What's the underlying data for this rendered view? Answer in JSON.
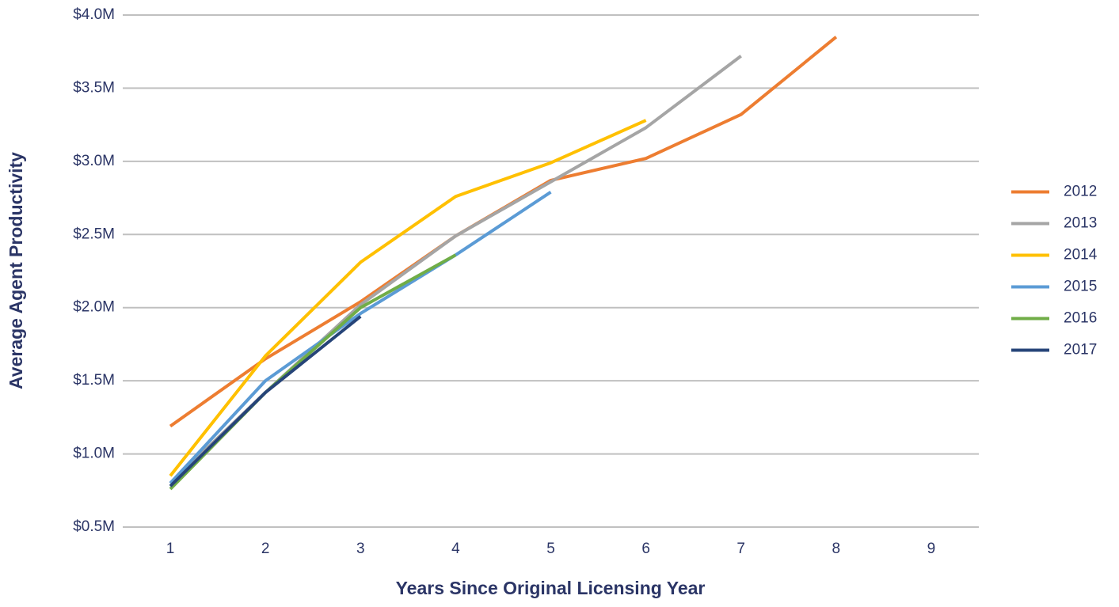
{
  "chart_data": {
    "type": "line",
    "x_label": "Years Since Original Licensing Year",
    "y_label": "Average Agent Productivity",
    "categories": [
      "1",
      "2",
      "3",
      "4",
      "5",
      "6",
      "7",
      "8",
      "9"
    ],
    "series": [
      {
        "name": "2012",
        "color": "#ed7d31",
        "values": [
          1190000,
          1650000,
          2040000,
          2490000,
          2870000,
          3020000,
          3320000,
          3850000,
          null
        ]
      },
      {
        "name": "2013",
        "color": "#a5a5a5",
        "values": [
          800000,
          1420000,
          2020000,
          2490000,
          2860000,
          3230000,
          3720000,
          null,
          null
        ]
      },
      {
        "name": "2014",
        "color": "#ffc000",
        "values": [
          850000,
          1670000,
          2310000,
          2760000,
          2990000,
          3280000,
          null,
          null,
          null
        ]
      },
      {
        "name": "2015",
        "color": "#5b9bd5",
        "values": [
          800000,
          1500000,
          1960000,
          2360000,
          2790000,
          null,
          null,
          null,
          null
        ]
      },
      {
        "name": "2016",
        "color": "#70ad47",
        "values": [
          760000,
          1420000,
          2000000,
          2360000,
          null,
          null,
          null,
          null,
          null
        ]
      },
      {
        "name": "2017",
        "color": "#264478",
        "values": [
          780000,
          1420000,
          1940000,
          null,
          null,
          null,
          null,
          null,
          null
        ]
      }
    ],
    "ylim": [
      500000,
      4000000
    ],
    "yticks": [
      {
        "value": 500000,
        "label": "$0.5M"
      },
      {
        "value": 1000000,
        "label": "$1.0M"
      },
      {
        "value": 1500000,
        "label": "$1.5M"
      },
      {
        "value": 2000000,
        "label": "$2.0M"
      },
      {
        "value": 2500000,
        "label": "$2.5M"
      },
      {
        "value": 3000000,
        "label": "$3.0M"
      },
      {
        "value": 3500000,
        "label": "$3.5M"
      },
      {
        "value": 4000000,
        "label": "$4.0M"
      }
    ],
    "grid": true,
    "legend": "right"
  }
}
